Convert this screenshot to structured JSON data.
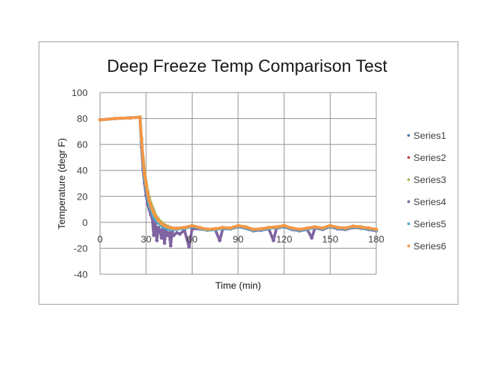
{
  "chart_data": {
    "type": "scatter",
    "title": "Deep Freeze Temp Comparison Test",
    "xlabel": "Time (min)",
    "ylabel": "Temperature (degr F)",
    "xlim": [
      0,
      180
    ],
    "ylim": [
      -40,
      100
    ],
    "x_ticks": [
      0,
      30,
      60,
      90,
      120,
      150,
      180
    ],
    "y_ticks": [
      100,
      80,
      60,
      40,
      20,
      0,
      -20,
      -40
    ],
    "grid": true,
    "legend_position": "right",
    "series": [
      {
        "name": "Series1",
        "color": "#4F81BD",
        "x": [
          0,
          10,
          20,
          26,
          27,
          28,
          29,
          30,
          31,
          32,
          33,
          34,
          35,
          36,
          38,
          40,
          42,
          44,
          46,
          48,
          50,
          55,
          60,
          65,
          70,
          75,
          80,
          85,
          90,
          95,
          100,
          105,
          110,
          115,
          120,
          125,
          130,
          135,
          140,
          145,
          150,
          155,
          160,
          165,
          170,
          175,
          180
        ],
        "y": [
          79,
          80,
          80.5,
          81,
          62,
          46,
          35,
          27,
          20,
          15,
          11,
          8,
          5,
          3,
          0,
          -2,
          -3.5,
          -4.5,
          -5,
          -5.2,
          -5,
          -4.5,
          -3,
          -4.5,
          -6,
          -5.5,
          -4.5,
          -5,
          -3,
          -4,
          -6,
          -5.5,
          -4.5,
          -4,
          -3,
          -5,
          -6,
          -5,
          -4,
          -5,
          -3,
          -4.5,
          -5,
          -3.5,
          -4,
          -5,
          -6
        ]
      },
      {
        "name": "Series2",
        "color": "#C0504D",
        "x": [
          0,
          10,
          20,
          26,
          27,
          28,
          29,
          30,
          31,
          32,
          33,
          34,
          35,
          36,
          38,
          40,
          42,
          44,
          46,
          48,
          50,
          55,
          60,
          65,
          70,
          75,
          80,
          85,
          90,
          95,
          100,
          105,
          110,
          115,
          120,
          125,
          130,
          135,
          140,
          145,
          150,
          155,
          160,
          165,
          170,
          175,
          180
        ],
        "y": [
          79,
          80,
          80.5,
          81,
          63,
          47,
          36,
          28,
          21,
          16,
          12,
          9,
          6,
          4,
          1,
          -1.5,
          -3,
          -4,
          -4.8,
          -5,
          -5,
          -4.3,
          -3,
          -4.3,
          -5.8,
          -5.4,
          -4.3,
          -4.6,
          -3,
          -4,
          -5.8,
          -5.4,
          -4.3,
          -3.8,
          -3,
          -4.8,
          -5.8,
          -4.8,
          -3.8,
          -4.8,
          -3,
          -4.3,
          -4.8,
          -3.3,
          -3.8,
          -4.8,
          -5.8
        ]
      },
      {
        "name": "Series3",
        "color": "#9BBB59",
        "x": [
          0,
          10,
          20,
          26,
          27,
          28,
          29,
          30,
          31,
          32,
          33,
          34,
          35,
          36,
          38,
          40,
          42,
          44,
          46,
          48,
          50,
          55,
          60,
          65,
          70,
          75,
          80,
          85,
          90,
          95,
          100,
          105,
          110,
          115,
          120,
          125,
          130,
          135,
          140,
          145,
          150,
          155,
          160,
          165,
          170,
          175,
          180
        ],
        "y": [
          79,
          80,
          80.5,
          81,
          65,
          50,
          39,
          31,
          24,
          19,
          15,
          12,
          9,
          6,
          2.5,
          0,
          -2,
          -3,
          -4,
          -4.5,
          -4.5,
          -4,
          -2.5,
          -4,
          -5.5,
          -5,
          -4,
          -4.5,
          -2.5,
          -3.5,
          -5.5,
          -5,
          -4,
          -3.5,
          -2.5,
          -4.5,
          -5.5,
          -4.5,
          -3.5,
          -4.5,
          -2.5,
          -4,
          -4.5,
          -3,
          -3.5,
          -4.5,
          -5.5
        ]
      },
      {
        "name": "Series4",
        "color": "#8064A2",
        "x": [
          0,
          10,
          20,
          26,
          27,
          28,
          29,
          30,
          31,
          32,
          33,
          34,
          35,
          36,
          37,
          38,
          39,
          40,
          41,
          42,
          43,
          44,
          45,
          46,
          47,
          48,
          50,
          52,
          55,
          58,
          60,
          65,
          70,
          75,
          78,
          80,
          85,
          90,
          95,
          100,
          105,
          110,
          113,
          115,
          120,
          125,
          130,
          135,
          138,
          140,
          145,
          150,
          155,
          160,
          165,
          170,
          175,
          180
        ],
        "y": [
          79,
          80,
          80.5,
          81,
          58,
          41,
          30,
          21,
          14,
          10,
          6,
          3,
          -10,
          0,
          -14,
          -4,
          -6,
          -12,
          -5,
          -16,
          -6,
          -10,
          -8,
          -18,
          -7,
          -10,
          -8,
          -9,
          -6,
          -19,
          -5,
          -5,
          -6,
          -5.5,
          -14,
          -5,
          -5,
          -3.5,
          -4.5,
          -6.5,
          -6,
          -5,
          -14,
          -4.5,
          -3.5,
          -5.5,
          -6.5,
          -5.5,
          -12,
          -4.5,
          -5.5,
          -3.5,
          -5,
          -5.5,
          -4,
          -4.5,
          -5.5,
          -6.5
        ]
      },
      {
        "name": "Series5",
        "color": "#4BACC6",
        "x": [
          0,
          10,
          20,
          26,
          27,
          28,
          29,
          30,
          31,
          32,
          33,
          34,
          35,
          36,
          38,
          40,
          42,
          44,
          46,
          48,
          50,
          55,
          60,
          65,
          70,
          75,
          80,
          85,
          90,
          95,
          100,
          105,
          110,
          115,
          120,
          125,
          130,
          135,
          140,
          145,
          150,
          155,
          160,
          165,
          170,
          175,
          180
        ],
        "y": [
          79,
          80,
          80.5,
          81,
          61,
          45,
          34,
          26,
          19,
          14,
          10,
          7,
          4,
          2,
          -0.5,
          -2.5,
          -4,
          -5,
          -5.5,
          -5.5,
          -5.2,
          -4.6,
          -3.2,
          -4.6,
          -6,
          -5.6,
          -4.6,
          -5,
          -3.2,
          -4.2,
          -6,
          -5.6,
          -4.6,
          -4.1,
          -3.2,
          -5.1,
          -6,
          -5.1,
          -4.1,
          -5.1,
          -3.2,
          -4.6,
          -5.1,
          -3.6,
          -4.1,
          -5.1,
          -6
        ]
      },
      {
        "name": "Series6",
        "color": "#F79646",
        "x": [
          0,
          10,
          20,
          26,
          27,
          28,
          29,
          30,
          31,
          32,
          33,
          34,
          35,
          36,
          38,
          40,
          42,
          44,
          46,
          48,
          50,
          55,
          60,
          65,
          70,
          75,
          80,
          85,
          90,
          95,
          100,
          105,
          110,
          115,
          120,
          125,
          130,
          135,
          140,
          145,
          150,
          155,
          160,
          165,
          170,
          175,
          180
        ],
        "y": [
          79,
          80,
          80.5,
          81,
          64,
          48,
          37,
          29,
          22,
          17,
          13,
          10,
          7,
          5,
          1.5,
          -1,
          -2.5,
          -3.5,
          -4.2,
          -4.6,
          -4.6,
          -4,
          -2.6,
          -4,
          -5.4,
          -5,
          -4,
          -4.4,
          -2.6,
          -3.6,
          -5.4,
          -5,
          -4,
          -3.6,
          -2.6,
          -4.4,
          -5.4,
          -4.4,
          -3.6,
          -4.4,
          -2.6,
          -4,
          -4.4,
          -3,
          -3.6,
          -4.4,
          -5.4
        ]
      }
    ]
  }
}
